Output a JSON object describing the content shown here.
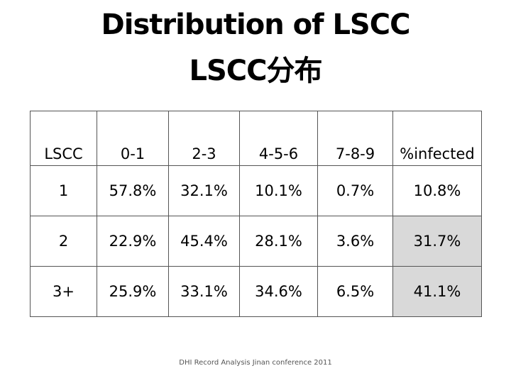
{
  "title": {
    "line1": "Distribution of LSCC",
    "line2": "LSCC分布"
  },
  "table": {
    "headers": [
      "LSCC",
      "0-1",
      "2-3",
      "4-5-6",
      "7-8-9",
      "%infected"
    ],
    "rows": [
      [
        "1",
        "57.8%",
        "32.1%",
        "10.1%",
        "0.7%",
        "10.8%"
      ],
      [
        "2",
        "22.9%",
        "45.4%",
        "28.1%",
        "3.6%",
        "31.7%"
      ],
      [
        "3+",
        "25.9%",
        "33.1%",
        "34.6%",
        "6.5%",
        "41.1%"
      ]
    ],
    "shaded_cell_color": "#d9d9d9"
  },
  "footer": "DHI Record Analysis Jinan conference 2011"
}
